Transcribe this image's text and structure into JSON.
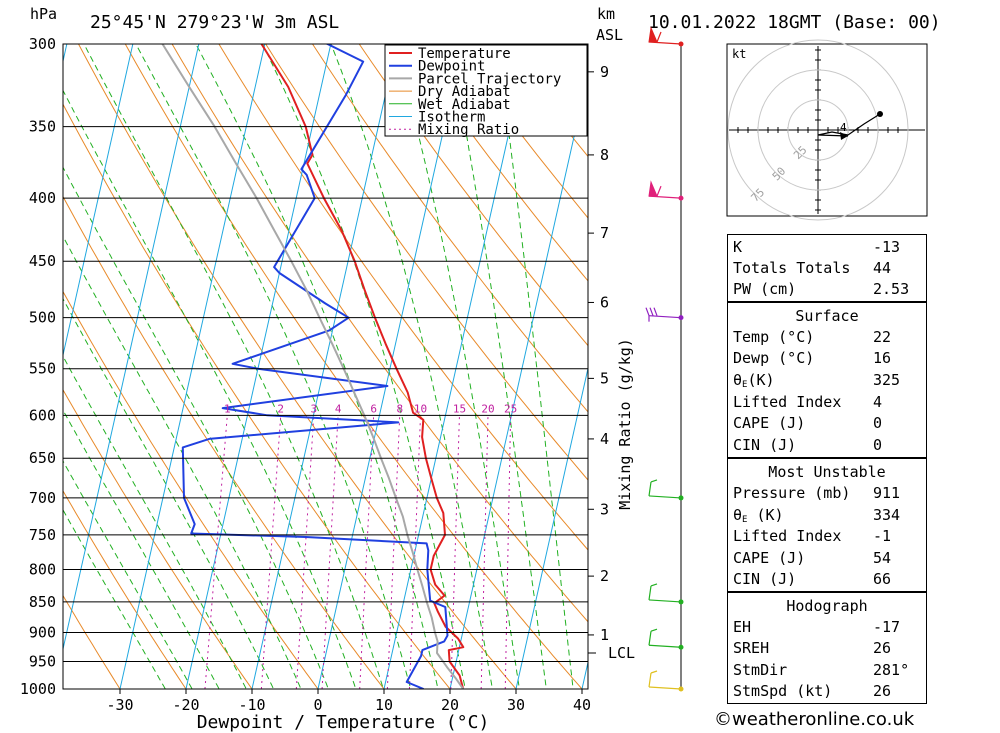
{
  "header": {
    "pressure_unit": "hPa",
    "location": "25°45'N  279°23'W  3m  ASL",
    "km_label": "km",
    "asl_label": "ASL",
    "datetime": "10.01.2022  18GMT  (Base: 00)"
  },
  "footer": {
    "copyright": "©weatheronline.co.uk"
  },
  "chart_data": {
    "type": "line",
    "title": "",
    "xlabel": "Dewpoint / Temperature (°C)",
    "ylabel": "hPa",
    "right_label": "Mixing Ratio (g/kg)",
    "xlim": [
      -40,
      40
    ],
    "ylim": [
      1000,
      300
    ],
    "pressure_ticks": [
      300,
      350,
      400,
      450,
      500,
      550,
      600,
      650,
      700,
      750,
      800,
      850,
      900,
      950,
      1000
    ],
    "temperature_ticks": [
      -30,
      -20,
      -10,
      0,
      10,
      20,
      30,
      40
    ],
    "km_ticks": [
      {
        "label": "1",
        "p": 904
      },
      {
        "label": "2",
        "p": 810
      },
      {
        "label": "3",
        "p": 715
      },
      {
        "label": "4",
        "p": 627
      },
      {
        "label": "5",
        "p": 560
      },
      {
        "label": "6",
        "p": 486
      },
      {
        "label": "7",
        "p": 427
      },
      {
        "label": "8",
        "p": 369
      },
      {
        "label": "9",
        "p": 316
      }
    ],
    "lcl": {
      "label": "LCL",
      "p": 935
    },
    "mixing_ratio_labels": [
      "1",
      "2",
      "3",
      "4",
      "6",
      "8",
      "10",
      "15",
      "20",
      "25"
    ],
    "mixing_ratio_values": [
      1,
      2,
      3,
      4,
      6,
      8,
      10,
      15,
      20,
      25
    ],
    "legend": [
      "Temperature",
      "Dewpoint",
      "Parcel Trajectory",
      "Dry Adiabat",
      "Wet Adiabat",
      "Isotherm",
      "Mixing Ratio"
    ],
    "legend_placement": "top-center",
    "colors": {
      "temperature": "#e02020",
      "dewpoint": "#2040e0",
      "parcel": "#a8a8a8",
      "dry_adiabat": "#e88a2a",
      "wet_adiabat": "#22b022",
      "isotherm": "#20a8e0",
      "mixing_ratio": "#c020a0"
    },
    "series": [
      {
        "name": "Temperature",
        "points": [
          [
            1000,
            22
          ],
          [
            975,
            21
          ],
          [
            950,
            19
          ],
          [
            930,
            18.5
          ],
          [
            925,
            20.6
          ],
          [
            910,
            19.5
          ],
          [
            890,
            17.2
          ],
          [
            865,
            15.5
          ],
          [
            852,
            14.7
          ],
          [
            840,
            16
          ],
          [
            823,
            14.2
          ],
          [
            800,
            13
          ],
          [
            780,
            13
          ],
          [
            750,
            14
          ],
          [
            720,
            13
          ],
          [
            700,
            11.5
          ],
          [
            675,
            10
          ],
          [
            650,
            8.5
          ],
          [
            625,
            7.2
          ],
          [
            605,
            6.8
          ],
          [
            597,
            5
          ],
          [
            575,
            3.5
          ],
          [
            550,
            1
          ],
          [
            525,
            -1.5
          ],
          [
            500,
            -4
          ],
          [
            475,
            -6.5
          ],
          [
            450,
            -9
          ],
          [
            425,
            -12
          ],
          [
            400,
            -15.8
          ],
          [
            375,
            -19.5
          ],
          [
            369,
            -19
          ],
          [
            350,
            -21
          ],
          [
            325,
            -25
          ],
          [
            300,
            -30.5
          ],
          [
            290,
            -31.2
          ]
        ]
      },
      {
        "name": "Dewpoint",
        "points": [
          [
            1000,
            16
          ],
          [
            987,
            13.2
          ],
          [
            940,
            14.5
          ],
          [
            930,
            14.5
          ],
          [
            915,
            17.5
          ],
          [
            905,
            17.8
          ],
          [
            858,
            16.5
          ],
          [
            848,
            14
          ],
          [
            800,
            12.5
          ],
          [
            772,
            12
          ],
          [
            762,
            11.5
          ],
          [
            753,
            -7
          ],
          [
            748,
            -24.5
          ],
          [
            735,
            -24.3
          ],
          [
            700,
            -26.8
          ],
          [
            637,
            -28.7
          ],
          [
            627,
            -25
          ],
          [
            608,
            3.1
          ],
          [
            600,
            -17
          ],
          [
            592,
            -24
          ],
          [
            568,
            0.2
          ],
          [
            550,
            -20
          ],
          [
            545,
            -24
          ],
          [
            512,
            -10.5
          ],
          [
            500,
            -8
          ],
          [
            487,
            -12
          ],
          [
            460,
            -20
          ],
          [
            455,
            -21
          ],
          [
            400,
            -17.2
          ],
          [
            383,
            -19.2
          ],
          [
            379,
            -20.2
          ],
          [
            330,
            -16
          ],
          [
            310,
            -14.5
          ],
          [
            300,
            -20.5
          ],
          [
            294,
            -25
          ]
        ]
      },
      {
        "name": "Parcel Trajectory",
        "points": [
          [
            1000,
            22
          ],
          [
            980,
            20.5
          ],
          [
            960,
            18.8
          ],
          [
            935,
            16.8
          ],
          [
            915,
            16.5
          ],
          [
            900,
            15.8
          ],
          [
            875,
            14.8
          ],
          [
            850,
            13.5
          ],
          [
            825,
            12.3
          ],
          [
            800,
            11
          ],
          [
            775,
            9.7
          ],
          [
            750,
            8.3
          ],
          [
            725,
            7
          ],
          [
            700,
            5.3
          ],
          [
            675,
            3.6
          ],
          [
            650,
            1.7
          ],
          [
            625,
            -0.2
          ],
          [
            600,
            -2.3
          ],
          [
            575,
            -4.6
          ],
          [
            550,
            -7
          ],
          [
            525,
            -9.6
          ],
          [
            500,
            -12.4
          ],
          [
            475,
            -15.3
          ],
          [
            450,
            -18.6
          ],
          [
            425,
            -22.2
          ],
          [
            400,
            -26
          ],
          [
            375,
            -30.3
          ],
          [
            350,
            -34.8
          ],
          [
            325,
            -40
          ],
          [
            300,
            -45.5
          ]
        ]
      }
    ],
    "wind_barbs": [
      {
        "p": 300,
        "color": "#e02020",
        "flag": "pennant"
      },
      {
        "p": 400,
        "color": "#e0207a",
        "flag": "pennant"
      },
      {
        "p": 500,
        "color": "#9020c0",
        "flag": "barbs"
      },
      {
        "p": 700,
        "color": "#22b022",
        "flag": "barb"
      },
      {
        "p": 850,
        "color": "#22b022",
        "flag": "barb"
      },
      {
        "p": 925,
        "color": "#22b022",
        "flag": "barb"
      },
      {
        "p": 1000,
        "color": "#e0c020",
        "flag": "barb"
      }
    ],
    "hodograph": {
      "unit": "kt",
      "rings": [
        25,
        50,
        75
      ],
      "ring_labels": [
        "25",
        "50",
        "75"
      ],
      "point_labels": [
        "4"
      ]
    }
  },
  "indices": {
    "top": [
      {
        "label": "K",
        "value": "-13"
      },
      {
        "label": "Totals Totals",
        "value": "44"
      },
      {
        "label": "PW (cm)",
        "value": "2.53"
      }
    ],
    "surface": {
      "title": "Surface",
      "rows": [
        {
          "label": "Temp (°C)",
          "value": "22"
        },
        {
          "label": "Dewp (°C)",
          "value": "16"
        },
        {
          "label_main": "θ",
          "label_sub": "E",
          "label_rest": "(K)",
          "value": "325"
        },
        {
          "label": "Lifted Index",
          "value": "4"
        },
        {
          "label": "CAPE (J)",
          "value": "0"
        },
        {
          "label": "CIN (J)",
          "value": "0"
        }
      ]
    },
    "most_unstable": {
      "title": "Most Unstable",
      "rows": [
        {
          "label": "Pressure (mb)",
          "value": "911"
        },
        {
          "label_main": "θ",
          "label_sub": "E",
          "label_rest": " (K)",
          "value": "334"
        },
        {
          "label": "Lifted Index",
          "value": "-1"
        },
        {
          "label": "CAPE (J)",
          "value": "54"
        },
        {
          "label": "CIN (J)",
          "value": "66"
        }
      ]
    },
    "hodograph": {
      "title": "Hodograph",
      "rows": [
        {
          "label": "EH",
          "value": "-17"
        },
        {
          "label": "SREH",
          "value": "26"
        },
        {
          "label": "StmDir",
          "value": "281°"
        },
        {
          "label": "StmSpd (kt)",
          "value": "26"
        }
      ]
    }
  }
}
